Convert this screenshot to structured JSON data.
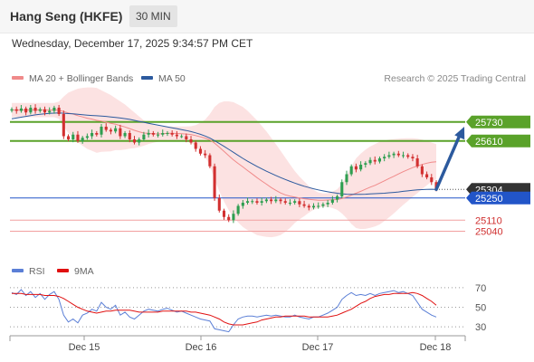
{
  "header": {
    "title": "Hang Seng (HKFE)",
    "timeframe": "30 MIN"
  },
  "datetime": "Wednesday, December 17, 2025 9:34:57 PM CET",
  "legend": {
    "ma20": "MA 20 + Bollinger Bands",
    "ma50": "MA 50",
    "credit": "Research © 2025 Trading Central"
  },
  "colors": {
    "ma20": "#f08a8a",
    "ma50": "#2c5a9e",
    "band": "#fbd8d8",
    "up_candle": "#2e9e50",
    "down_candle": "#d23030",
    "resistance": "#5aa22a",
    "support": "#2255c8",
    "target": "#e87f7f",
    "price": "#333333",
    "arrow": "#2c5a9e",
    "rsi": "#5b7fd6",
    "rsi_ma": "#e01010"
  },
  "chart_data": [
    {
      "type": "candlestick",
      "title": "",
      "xlabel": "",
      "ylabel": "",
      "ylim": [
        24900,
        25900
      ],
      "x_ticks": [
        "Dec 15",
        "Dec 16",
        "Dec 17",
        "Dec 18"
      ],
      "levels": [
        {
          "value": 25730,
          "label": "25730",
          "kind": "resistance"
        },
        {
          "value": 25610,
          "label": "25610",
          "kind": "resistance"
        },
        {
          "value": 25304,
          "label": "25304",
          "kind": "last-price"
        },
        {
          "value": 25250,
          "label": "25250",
          "kind": "support"
        },
        {
          "value": 25110,
          "label": "25110",
          "kind": "target"
        },
        {
          "value": 25040,
          "label": "25040",
          "kind": "target"
        }
      ],
      "close": [
        25810,
        25800,
        25815,
        25790,
        25820,
        25800,
        25810,
        25790,
        25800,
        25820,
        25780,
        25640,
        25620,
        25650,
        25610,
        25630,
        25640,
        25660,
        25650,
        25700,
        25680,
        25670,
        25690,
        25640,
        25660,
        25620,
        25600,
        25620,
        25650,
        25660,
        25650,
        25650,
        25660,
        25660,
        25650,
        25640,
        25640,
        25620,
        25600,
        25560,
        25530,
        25520,
        25450,
        25250,
        25170,
        25130,
        25110,
        25150,
        25200,
        25220,
        25230,
        25230,
        25220,
        25230,
        25240,
        25230,
        25240,
        25230,
        25220,
        25220,
        25230,
        25210,
        25200,
        25190,
        25200,
        25200,
        25210,
        25220,
        25240,
        25260,
        25350,
        25400,
        25450,
        25430,
        25460,
        25470,
        25490,
        25480,
        25500,
        25510,
        25520,
        25530,
        25520,
        25520,
        25510,
        25500,
        25450,
        25400,
        25380,
        25350,
        25304
      ],
      "ma20": [
        25805,
        25805,
        25806,
        25805,
        25806,
        25806,
        25806,
        25805,
        25805,
        25806,
        25804,
        25796,
        25787,
        25780,
        25770,
        25762,
        25754,
        25748,
        25740,
        25736,
        25729,
        25722,
        25716,
        25706,
        25698,
        25688,
        25677,
        25668,
        25660,
        25658,
        25655,
        25655,
        25656,
        25658,
        25658,
        25657,
        25656,
        25654,
        25651,
        25644,
        25636,
        25628,
        25617,
        25596,
        25571,
        25544,
        25517,
        25491,
        25468,
        25446,
        25423,
        25401,
        25378,
        25357,
        25337,
        25316,
        25298,
        25282,
        25270,
        25262,
        25256,
        25250,
        25245,
        25241,
        25238,
        25236,
        25236,
        25237,
        25238,
        25240,
        25246,
        25256,
        25268,
        25280,
        25292,
        25305,
        25318,
        25330,
        25344,
        25358,
        25373,
        25387,
        25402,
        25416,
        25429,
        25442,
        25452,
        25462,
        25470,
        25476,
        25479
      ],
      "bb_upper": [
        25850,
        25850,
        25850,
        25850,
        25850,
        25850,
        25850,
        25850,
        25850,
        25850,
        25858,
        25890,
        25915,
        25928,
        25940,
        25945,
        25948,
        25948,
        25945,
        25930,
        25915,
        25900,
        25880,
        25860,
        25840,
        25815,
        25790,
        25765,
        25740,
        25725,
        25712,
        25705,
        25700,
        25700,
        25702,
        25702,
        25702,
        25702,
        25703,
        25710,
        25725,
        25745,
        25780,
        25825,
        25850,
        25860,
        25860,
        25855,
        25840,
        25825,
        25800,
        25770,
        25740,
        25705,
        25670,
        25630,
        25590,
        25548,
        25505,
        25462,
        25420,
        25385,
        25355,
        25325,
        25300,
        25285,
        25278,
        25280,
        25290,
        25305,
        25340,
        25390,
        25450,
        25500,
        25530,
        25555,
        25575,
        25590,
        25605,
        25612,
        25618,
        25622,
        25624,
        25626,
        25627,
        25627,
        25624,
        25618,
        25610,
        25600,
        25590
      ],
      "bb_lower": [
        25760,
        25760,
        25760,
        25760,
        25760,
        25760,
        25760,
        25760,
        25760,
        25760,
        25750,
        25702,
        25660,
        25632,
        25602,
        25580,
        25560,
        25548,
        25535,
        25542,
        25543,
        25544,
        25552,
        25552,
        25556,
        25561,
        25564,
        25571,
        25580,
        25591,
        25598,
        25605,
        25612,
        25616,
        25614,
        25612,
        25610,
        25606,
        25599,
        25578,
        25547,
        25511,
        25454,
        25367,
        25292,
        25228,
        25174,
        25127,
        25096,
        25067,
        25046,
        25032,
        25016,
        25009,
        25004,
        25002,
        25006,
        25016,
        25035,
        25062,
        25092,
        25115,
        25135,
        25157,
        25176,
        25187,
        25194,
        25194,
        25186,
        25175,
        25152,
        25122,
        25086,
        25060,
        25054,
        25055,
        25061,
        25070,
        25083,
        25104,
        25128,
        25152,
        25180,
        25206,
        25231,
        25257,
        25280,
        25306,
        25330,
        25352,
        25368
      ],
      "ma50": [
        25750,
        25755,
        25760,
        25765,
        25770,
        25775,
        25778,
        25781,
        25784,
        25786,
        25787,
        25785,
        25783,
        25781,
        25778,
        25776,
        25773,
        25771,
        25769,
        25767,
        25765,
        25762,
        25759,
        25755,
        25751,
        25746,
        25740,
        25734,
        25728,
        25722,
        25716,
        25710,
        25704,
        25699,
        25693,
        25688,
        25682,
        25676,
        25669,
        25661,
        25652,
        25641,
        25628,
        25612,
        25594,
        25576,
        25557,
        25538,
        25519,
        25500,
        25482,
        25465,
        25449,
        25434,
        25419,
        25405,
        25392,
        25379,
        25367,
        25355,
        25344,
        25334,
        25324,
        25316,
        25308,
        25301,
        25295,
        25289,
        25284,
        25280,
        25276,
        25274,
        25273,
        25273,
        25273,
        25274,
        25276,
        25277,
        25279,
        25280,
        25283,
        25285,
        25288,
        25292,
        25295,
        25298,
        25301,
        25303,
        25304,
        25305,
        25304
      ],
      "projection": {
        "from": 25304,
        "to": 25700
      }
    },
    {
      "type": "line",
      "title": "",
      "legend": [
        "RSI",
        "9MA"
      ],
      "ylim": [
        20,
        80
      ],
      "y_ticks": [
        30,
        50,
        70
      ],
      "rsi": [
        65,
        63,
        68,
        62,
        66,
        60,
        64,
        58,
        63,
        66,
        58,
        42,
        35,
        38,
        34,
        42,
        44,
        48,
        46,
        55,
        50,
        48,
        52,
        42,
        45,
        40,
        38,
        42,
        46,
        48,
        47,
        46,
        48,
        49,
        47,
        45,
        46,
        44,
        42,
        40,
        38,
        37,
        36,
        28,
        27,
        26,
        25,
        32,
        38,
        40,
        41,
        41,
        40,
        41,
        42,
        41,
        42,
        41,
        40,
        40,
        42,
        40,
        39,
        38,
        40,
        40,
        42,
        44,
        47,
        50,
        58,
        62,
        65,
        62,
        63,
        62,
        64,
        62,
        64,
        65,
        66,
        67,
        65,
        66,
        64,
        62,
        55,
        48,
        45,
        42,
        40
      ],
      "rsi_ma": [
        64,
        64,
        64,
        63,
        63,
        63,
        63,
        62,
        62,
        62,
        61,
        59,
        56,
        53,
        50,
        48,
        46,
        45,
        44,
        45,
        46,
        46,
        47,
        47,
        47,
        47,
        46,
        45,
        45,
        45,
        45,
        45,
        46,
        46,
        46,
        46,
        46,
        46,
        45,
        45,
        44,
        43,
        42,
        40,
        38,
        35,
        33,
        32,
        32,
        32,
        33,
        34,
        35,
        37,
        38,
        39,
        40,
        40,
        41,
        41,
        41,
        41,
        41,
        40,
        40,
        40,
        40,
        40,
        41,
        42,
        44,
        46,
        48,
        51,
        54,
        56,
        59,
        61,
        62,
        63,
        63,
        64,
        64,
        64,
        64,
        65,
        64,
        62,
        59,
        56,
        52
      ]
    }
  ]
}
